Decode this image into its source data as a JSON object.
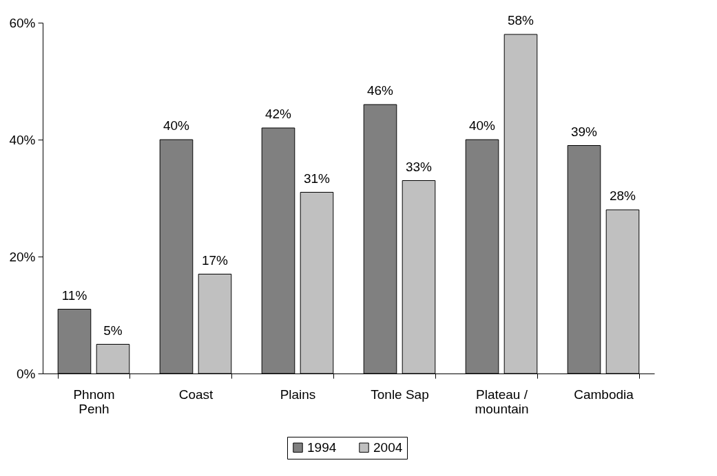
{
  "chart_data": {
    "type": "bar",
    "categories": [
      "Phnom Penh",
      "Coast",
      "Plains",
      "Tonle Sap",
      "Plateau / mountain",
      "Cambodia"
    ],
    "series": [
      {
        "name": "1994",
        "color": "#808080",
        "values": [
          11,
          40,
          42,
          46,
          40,
          39
        ],
        "value_labels": [
          "11%",
          "40%",
          "42%",
          "46%",
          "40%",
          "39%"
        ]
      },
      {
        "name": "2004",
        "color": "#c0c0c0",
        "values": [
          5,
          17,
          31,
          33,
          58,
          28
        ],
        "value_labels": [
          "5%",
          "17%",
          "31%",
          "33%",
          "58%",
          "28%"
        ]
      }
    ],
    "ylim": [
      0,
      60
    ],
    "yticks": [
      {
        "value": 0,
        "label": "0%"
      },
      {
        "value": 20,
        "label": "20%"
      },
      {
        "value": 40,
        "label": "40%"
      },
      {
        "value": 60,
        "label": "60%"
      }
    ],
    "grid": false,
    "legend": "bottom"
  }
}
